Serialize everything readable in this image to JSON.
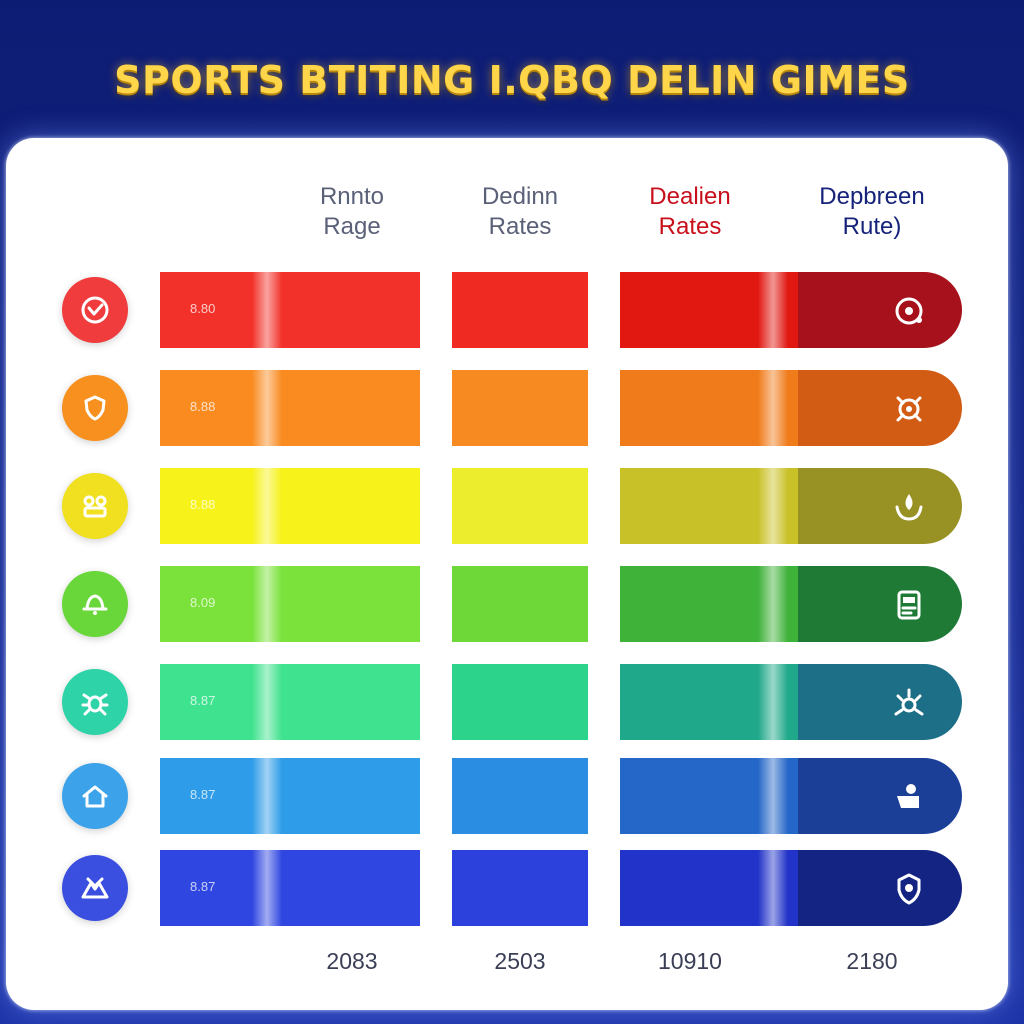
{
  "title": "SPORTS BTITING I.QBQ DELIN GIMES",
  "columns": [
    {
      "label": "Rnnto\nRage",
      "color": "#5a6078"
    },
    {
      "label": "Dedinn\nRates",
      "color": "#5a6078"
    },
    {
      "label": "Dealien\nRates",
      "color": "#c8101c"
    },
    {
      "label": "Depbreen\nRute)",
      "color": "#16237a"
    }
  ],
  "rows": [
    {
      "value": "8.80",
      "icon": "heart-check-icon",
      "end_icon": "ball-icon",
      "icon_bg": "#f03c3c",
      "colors": [
        "#f2322a",
        "#ee2a22",
        "#e11812",
        "#a6111c"
      ]
    },
    {
      "value": "8.88",
      "icon": "shield-icon",
      "end_icon": "target-icon",
      "icon_bg": "#f7901e",
      "colors": [
        "#f98b20",
        "#f78a20",
        "#f07b1a",
        "#d35c14"
      ]
    },
    {
      "value": "8.88",
      "icon": "group-icon",
      "end_icon": "drop-icon",
      "icon_bg": "#f0e020",
      "colors": [
        "#f6f21a",
        "#eced2c",
        "#c9c128",
        "#989225"
      ]
    },
    {
      "value": "8.09",
      "icon": "bell-icon",
      "end_icon": "card-icon",
      "icon_bg": "#69d63a",
      "colors": [
        "#7ae23a",
        "#6ed838",
        "#3fb23a",
        "#1f7a35"
      ]
    },
    {
      "value": "8.87",
      "icon": "bug-icon",
      "end_icon": "spark-icon",
      "icon_bg": "#2fd3a8",
      "colors": [
        "#3fe28e",
        "#2bd48a",
        "#1fa889",
        "#1c6f86"
      ]
    },
    {
      "value": "8.87",
      "icon": "house-icon",
      "end_icon": "person-icon",
      "icon_bg": "#3ca3ea",
      "colors": [
        "#2e9ce8",
        "#2a8de2",
        "#2567c8",
        "#1b3f97"
      ]
    },
    {
      "value": "8.87",
      "icon": "mountain-icon",
      "end_icon": "badge-icon",
      "icon_bg": "#3a4fe0",
      "colors": [
        "#2f46e0",
        "#2c41dc",
        "#2133c8",
        "#132483"
      ]
    }
  ],
  "footer": [
    "2083",
    "2503",
    "10910",
    "2180"
  ],
  "colors": {
    "title": "#ffd54a",
    "background": "#0d1c73",
    "panel": "#ffffff"
  }
}
